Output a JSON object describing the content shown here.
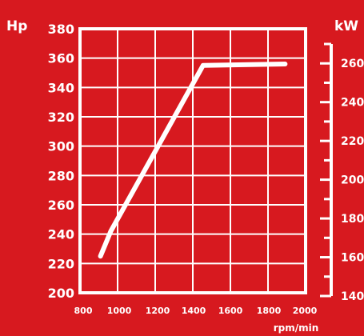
{
  "chart_data": {
    "type": "line",
    "xlabel": "rpm/min",
    "ylabel_left": "Hp",
    "ylabel_right": "kW",
    "xlim": [
      900,
      2000
    ],
    "ylim": [
      200,
      380
    ],
    "y2lim": [
      140,
      270
    ],
    "x_ticks": [
      "800",
      "1000",
      "1200",
      "1400",
      "1600",
      "1800",
      "2000"
    ],
    "y_ticks": [
      "200",
      "220",
      "240",
      "260",
      "280",
      "300",
      "320",
      "340",
      "360",
      "380"
    ],
    "y2_ticks": [
      "140",
      "160",
      "180",
      "200",
      "220",
      "240",
      "260"
    ],
    "grid": true,
    "series": [
      {
        "x": [
          1000,
          1050,
          1500,
          1900
        ],
        "values": [
          225,
          242,
          355,
          356
        ]
      }
    ]
  },
  "colors": {
    "background": "#d7191f",
    "foreground": "#ffffff"
  }
}
